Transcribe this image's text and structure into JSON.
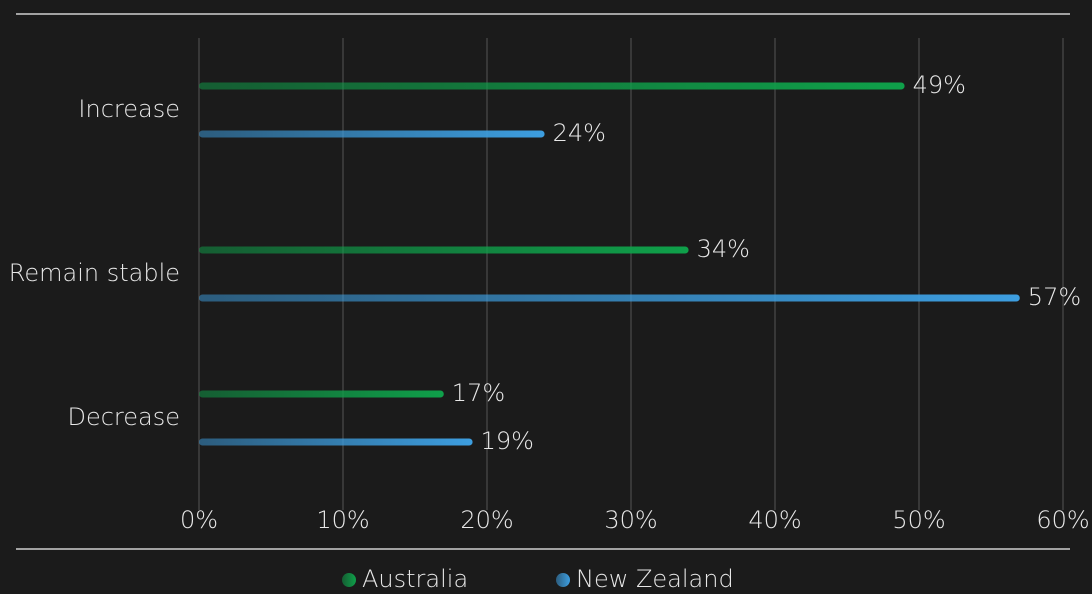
{
  "chart_data": {
    "type": "hbar",
    "categories": [
      "Increase",
      "Remain stable",
      "Decrease"
    ],
    "series": [
      {
        "name": "Australia",
        "color": "#0fa04a",
        "values": [
          49,
          34,
          17
        ],
        "value_labels": [
          "49%",
          "34%",
          "17%"
        ]
      },
      {
        "name": "New Zealand",
        "color": "#3d9ee0",
        "values": [
          24,
          57,
          19
        ],
        "value_labels": [
          "24%",
          "57%",
          "19%"
        ]
      }
    ],
    "xlim": [
      0,
      60
    ],
    "xticks": [
      {
        "value": 0,
        "label": "0%"
      },
      {
        "value": 10,
        "label": "10%"
      },
      {
        "value": 20,
        "label": "20%"
      },
      {
        "value": 30,
        "label": "30%"
      },
      {
        "value": 40,
        "label": "40%"
      },
      {
        "value": 50,
        "label": "50%"
      },
      {
        "value": 60,
        "label": "60%"
      }
    ],
    "grid": true
  }
}
